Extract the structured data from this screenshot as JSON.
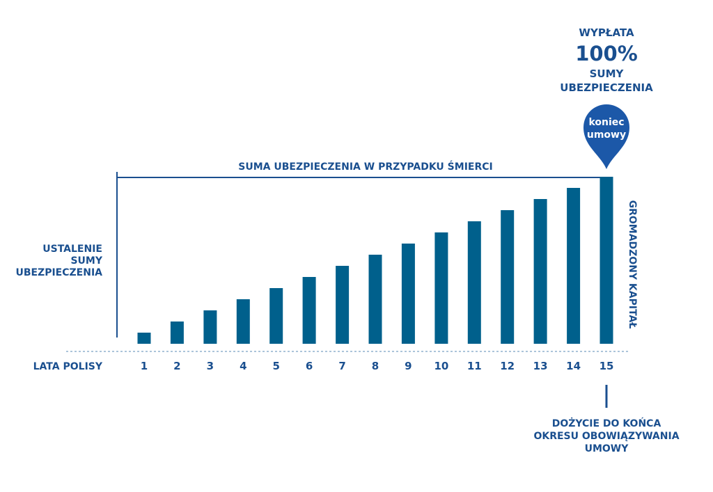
{
  "colors": {
    "bar": "#00608c",
    "text": "#1a4f8f",
    "line": "#1a4f8f",
    "pin": "#1c58a8",
    "dashed": "#5a88b5"
  },
  "payout": {
    "line1": "WYPŁATA",
    "big": "100%",
    "line2": "SUMY",
    "line3": "UBEZPIECZENIA"
  },
  "pin": {
    "line1": "koniec",
    "line2": "umowy"
  },
  "death_sum_label": "SUMA UBEZPIECZENIA W PRZYPADKU ŚMIERCI",
  "left_label": {
    "line1": "USTALENIE",
    "line2": "SUMY",
    "line3": "UBEZPIECZENIA"
  },
  "right_label": "GROMADZONY KAPITAŁ",
  "bottom_note": {
    "line1": "DOŻYCIE DO KOŃCA",
    "line2": "OKRESU OBOWIĄZYWANIA",
    "line3": "UMOWY"
  },
  "chart_data": {
    "type": "bar",
    "xlabel": "LATA POLISY",
    "ylabel": "",
    "categories": [
      "1",
      "2",
      "3",
      "4",
      "5",
      "6",
      "7",
      "8",
      "9",
      "10",
      "11",
      "12",
      "13",
      "14",
      "15"
    ],
    "values": [
      16,
      32,
      48,
      64,
      80,
      96,
      112,
      128,
      144,
      160,
      176,
      192,
      208,
      224,
      240
    ],
    "ylim": [
      0,
      240
    ],
    "grid": false
  }
}
